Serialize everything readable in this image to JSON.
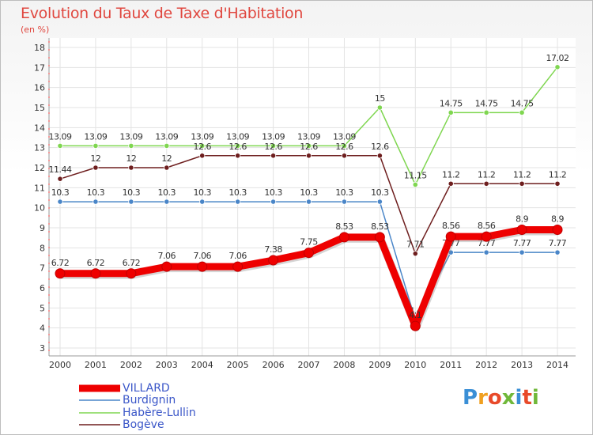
{
  "title": "Evolution du Taux de Taxe d'Habitation",
  "subtitle": "(en %)",
  "logo": {
    "text": "Proxiti",
    "colors": [
      "#3a8fd6",
      "#f0a020",
      "#e84a2a",
      "#70b83a",
      "#3a8fd6",
      "#e84a2a",
      "#70b83a"
    ]
  },
  "chart_data": {
    "type": "line",
    "x": [
      2000,
      2001,
      2002,
      2003,
      2004,
      2005,
      2006,
      2007,
      2008,
      2009,
      2010,
      2011,
      2012,
      2013,
      2014
    ],
    "ylim": [
      3,
      18
    ],
    "yticks": [
      3,
      4,
      5,
      6,
      7,
      8,
      9,
      10,
      11,
      12,
      13,
      14,
      15,
      16,
      17,
      18
    ],
    "grid": true,
    "legend_position": "bottom-left",
    "series": [
      {
        "name": "Habère-Lullin",
        "color": "#7fd650",
        "values": [
          13.09,
          13.09,
          13.09,
          13.09,
          13.09,
          13.09,
          13.09,
          13.09,
          13.09,
          15,
          11.15,
          14.75,
          14.75,
          14.75,
          17.02
        ],
        "labels": [
          "13.09",
          "13.09",
          "13.09",
          "13.09",
          "13.09",
          "13.09",
          "13.09",
          "13.09",
          "13.09",
          "15",
          "11.15",
          "14.75",
          "14.75",
          "14.75",
          "17.02"
        ]
      },
      {
        "name": "Bogève",
        "color": "#6e1e1e",
        "values": [
          11.44,
          12,
          12,
          12,
          12.6,
          12.6,
          12.6,
          12.6,
          12.6,
          12.6,
          7.71,
          11.2,
          11.2,
          11.2,
          11.2
        ],
        "labels": [
          "11.44",
          "12",
          "12",
          "12",
          "12.6",
          "12.6",
          "12.6",
          "12.6",
          "12.6",
          "12.6",
          "7.71",
          "11.2",
          "11.2",
          "11.2",
          "11.2"
        ]
      },
      {
        "name": "Burdignin",
        "color": "#4a86c8",
        "values": [
          10.3,
          10.3,
          10.3,
          10.3,
          10.3,
          10.3,
          10.3,
          10.3,
          10.3,
          10.3,
          4.4,
          7.77,
          7.77,
          7.77,
          7.77
        ],
        "labels": [
          "10.3",
          "10.3",
          "10.3",
          "10.3",
          "10.3",
          "10.3",
          "10.3",
          "10.3",
          "10.3",
          "10.3",
          "4.4",
          "7.77",
          "7.77",
          "7.77",
          "7.77"
        ]
      },
      {
        "name": "VILLARD",
        "color": "#ee0000",
        "values": [
          6.72,
          6.72,
          6.72,
          7.06,
          7.06,
          7.06,
          7.38,
          7.75,
          8.53,
          8.53,
          4.1,
          8.56,
          8.56,
          8.9,
          8.9
        ],
        "labels": [
          "6.72",
          "6.72",
          "6.72",
          "7.06",
          "7.06",
          "7.06",
          "7.38",
          "7.75",
          "8.53",
          "8.53",
          "4.1",
          "8.56",
          "8.56",
          "8.9",
          "8.9"
        ]
      }
    ],
    "legend": [
      "VILLARD",
      "Burdignin",
      "Habère-Lullin",
      "Bogève"
    ]
  }
}
